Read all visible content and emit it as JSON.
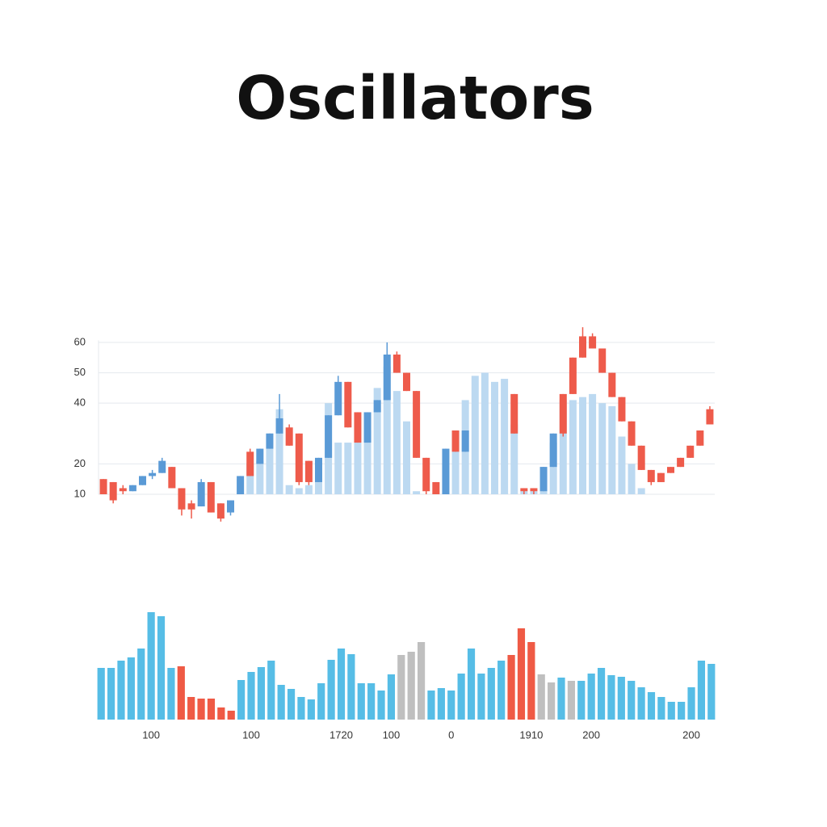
{
  "chart_data": [
    {
      "type": "candlestick",
      "title": "Oscillators",
      "ylim": [
        0,
        66
      ],
      "yticks": [
        60,
        50,
        40,
        20,
        10
      ],
      "grid": true,
      "bar_color": "#bcd9f1",
      "values": [
        null,
        null,
        null,
        null,
        null,
        null,
        null,
        null,
        null,
        null,
        null,
        null,
        null,
        null,
        15,
        20,
        21,
        30,
        38,
        13,
        12,
        13,
        19,
        40,
        27,
        27,
        27,
        31,
        45,
        52,
        44,
        34,
        11,
        10,
        10,
        20,
        31,
        41,
        49,
        50,
        47,
        48,
        33,
        11,
        11,
        19,
        27,
        41,
        41,
        42,
        43,
        40,
        39,
        29,
        20,
        12,
        null,
        null,
        null,
        null,
        null,
        null,
        null
      ],
      "open": [
        15,
        14,
        12,
        11,
        13,
        16,
        17,
        19,
        12,
        7,
        6,
        14,
        7,
        4,
        10,
        24,
        20,
        25,
        30,
        32,
        30,
        21,
        14,
        22,
        36,
        47,
        37,
        27,
        37,
        41,
        56,
        50,
        44,
        22,
        14,
        10,
        31,
        24,
        null,
        null,
        null,
        null,
        43,
        12,
        12,
        11,
        19,
        30,
        43,
        55,
        62,
        58,
        50,
        42,
        34,
        26,
        18,
        14,
        17,
        19,
        22,
        26,
        33
      ],
      "close": [
        10,
        8,
        11,
        13,
        16,
        17,
        21,
        12,
        5,
        5,
        14,
        4,
        2,
        8,
        16,
        16,
        25,
        30,
        35,
        26,
        14,
        14,
        22,
        36,
        47,
        32,
        27,
        37,
        41,
        56,
        50,
        44,
        22,
        11,
        10,
        25,
        24,
        31,
        null,
        null,
        null,
        null,
        30,
        11,
        11,
        19,
        30,
        43,
        55,
        62,
        58,
        50,
        42,
        34,
        26,
        18,
        14,
        17,
        19,
        22,
        26,
        31,
        38
      ],
      "high": [
        15,
        14,
        13,
        13,
        16,
        18,
        22,
        19,
        12,
        8,
        15,
        14,
        7,
        8,
        16,
        25,
        25,
        30,
        43,
        33,
        30,
        21,
        22,
        36,
        49,
        47,
        37,
        37,
        41,
        60,
        57,
        50,
        44,
        22,
        14,
        25,
        31,
        31,
        null,
        null,
        null,
        null,
        43,
        12,
        12,
        19,
        30,
        43,
        55,
        65,
        63,
        58,
        50,
        42,
        34,
        26,
        18,
        17,
        19,
        22,
        26,
        31,
        39
      ],
      "low": [
        10,
        7,
        10,
        11,
        13,
        15,
        17,
        12,
        3,
        2,
        6,
        4,
        1,
        3,
        10,
        16,
        20,
        25,
        30,
        26,
        13,
        13,
        14,
        22,
        36,
        32,
        27,
        27,
        37,
        41,
        50,
        44,
        22,
        10,
        10,
        10,
        24,
        24,
        null,
        null,
        null,
        null,
        30,
        10,
        10,
        11,
        19,
        29,
        43,
        55,
        58,
        50,
        42,
        34,
        26,
        18,
        13,
        14,
        17,
        19,
        22,
        26,
        33
      ],
      "colors": [
        "#ee5b4b",
        "#ee5b4b",
        "#ee5b4b",
        "#5a9ad6",
        "#5a9ad6",
        "#5a9ad6",
        "#5a9ad6",
        "#ee5b4b",
        "#ee5b4b",
        "#ee5b4b",
        "#5a9ad6",
        "#ee5b4b",
        "#ee5b4b",
        "#5a9ad6",
        "#5a9ad6",
        "#ee5b4b",
        "#5a9ad6",
        "#5a9ad6",
        "#5a9ad6",
        "#ee5b4b",
        "#ee5b4b",
        "#ee5b4b",
        "#5a9ad6",
        "#5a9ad6",
        "#5a9ad6",
        "#ee5b4b",
        "#ee5b4b",
        "#5a9ad6",
        "#5a9ad6",
        "#5a9ad6",
        "#ee5b4b",
        "#ee5b4b",
        "#ee5b4b",
        "#ee5b4b",
        "#ee5b4b",
        "#5a9ad6",
        "#ee5b4b",
        "#5a9ad6",
        null,
        null,
        null,
        null,
        "#ee5b4b",
        "#ee5b4b",
        "#ee5b4b",
        "#5a9ad6",
        "#5a9ad6",
        "#ee5b4b",
        "#ee5b4b",
        "#ee5b4b",
        "#ee5b4b",
        "#ee5b4b",
        "#ee5b4b",
        "#ee5b4b",
        "#ee5b4b",
        "#ee5b4b",
        "#ee5b4b",
        "#ee5b4b",
        "#ee5b4b",
        "#ee5b4b",
        "#ee5b4b",
        "#ee5b4b",
        "#ee5b4b"
      ]
    },
    {
      "type": "bar",
      "ylim": [
        0,
        140
      ],
      "categories": [
        null,
        null,
        null,
        null,
        null,
        "100",
        null,
        null,
        null,
        null,
        null,
        null,
        null,
        null,
        null,
        "100",
        null,
        null,
        null,
        null,
        null,
        null,
        null,
        null,
        "1720",
        null,
        null,
        null,
        null,
        "100",
        null,
        null,
        null,
        null,
        null,
        "0",
        null,
        null,
        null,
        null,
        null,
        null,
        null,
        "1910",
        null,
        null,
        null,
        null,
        null,
        "200",
        null,
        null,
        null,
        null,
        null,
        null,
        null,
        null,
        null,
        "200",
        null,
        null
      ],
      "values": [
        64,
        64,
        73,
        77,
        88,
        133,
        128,
        64,
        66,
        28,
        26,
        26,
        15,
        11,
        49,
        59,
        65,
        73,
        43,
        38,
        28,
        25,
        45,
        74,
        88,
        81,
        45,
        45,
        36,
        56,
        80,
        84,
        96,
        36,
        39,
        36,
        57,
        88,
        57,
        64,
        73,
        80,
        113,
        96,
        56,
        46,
        52,
        48,
        48,
        57,
        64,
        55,
        53,
        48,
        40,
        34,
        28,
        22,
        22,
        40,
        73,
        69
      ],
      "colors": [
        "#56bde6",
        "#56bde6",
        "#56bde6",
        "#56bde6",
        "#56bde6",
        "#56bde6",
        "#56bde6",
        "#56bde6",
        "#ef5a45",
        "#ef5a45",
        "#ef5a45",
        "#ef5a45",
        "#ef5a45",
        "#ef5a45",
        "#56bde6",
        "#56bde6",
        "#56bde6",
        "#56bde6",
        "#56bde6",
        "#56bde6",
        "#56bde6",
        "#56bde6",
        "#56bde6",
        "#56bde6",
        "#56bde6",
        "#56bde6",
        "#56bde6",
        "#56bde6",
        "#56bde6",
        "#56bde6",
        "#bfbfbf",
        "#bfbfbf",
        "#bfbfbf",
        "#56bde6",
        "#56bde6",
        "#56bde6",
        "#56bde6",
        "#56bde6",
        "#56bde6",
        "#56bde6",
        "#56bde6",
        "#ef5a45",
        "#ef5a45",
        "#ef5a45",
        "#bfbfbf",
        "#bfbfbf",
        "#56bde6",
        "#bfbfbf",
        "#56bde6",
        "#56bde6",
        "#56bde6",
        "#56bde6",
        "#56bde6",
        "#56bde6",
        "#56bde6",
        "#56bde6",
        "#56bde6",
        "#56bde6",
        "#56bde6",
        "#56bde6",
        "#56bde6",
        "#56bde6"
      ]
    }
  ]
}
